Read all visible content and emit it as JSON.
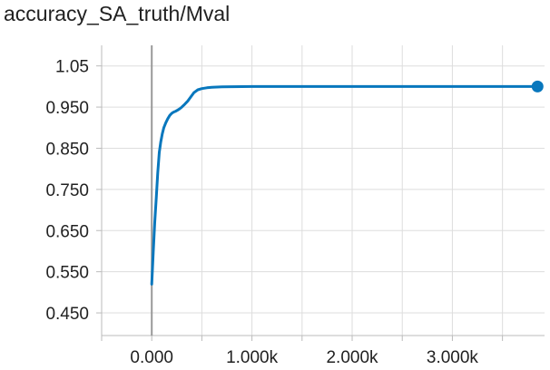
{
  "chart_data": {
    "type": "line",
    "title": "accuracy_SA_truth/Mval",
    "xlabel": "",
    "ylabel": "",
    "xlim": [
      -500,
      3920
    ],
    "ylim": [
      0.395,
      1.1
    ],
    "x_ticks": [
      0,
      1000,
      2000,
      3000
    ],
    "x_tick_labels": [
      "0.000",
      "1.000k",
      "2.000k",
      "3.000k"
    ],
    "y_ticks": [
      0.45,
      0.55,
      0.65,
      0.75,
      0.85,
      0.95,
      1.05
    ],
    "y_tick_labels": [
      "0.450",
      "0.550",
      "0.650",
      "0.750",
      "0.850",
      "0.950",
      "1.05"
    ],
    "grid": true,
    "series": [
      {
        "color": "#0877bd",
        "x": [
          0,
          15,
          30,
          45,
          60,
          75,
          90,
          105,
          120,
          140,
          160,
          180,
          200,
          220,
          240,
          260,
          280,
          300,
          330,
          360,
          390,
          420,
          460,
          500,
          550,
          600,
          700,
          800,
          1000,
          1300,
          1700,
          2200,
          2700,
          3200,
          3600,
          3850
        ],
        "values": [
          0.52,
          0.6,
          0.67,
          0.73,
          0.79,
          0.84,
          0.865,
          0.885,
          0.9,
          0.912,
          0.922,
          0.93,
          0.935,
          0.938,
          0.94,
          0.943,
          0.946,
          0.95,
          0.957,
          0.965,
          0.975,
          0.985,
          0.992,
          0.995,
          0.997,
          0.998,
          0.999,
          0.9995,
          1.0,
          1.0,
          1.0,
          1.0,
          1.0,
          1.0,
          1.0,
          1.0
        ]
      }
    ]
  }
}
